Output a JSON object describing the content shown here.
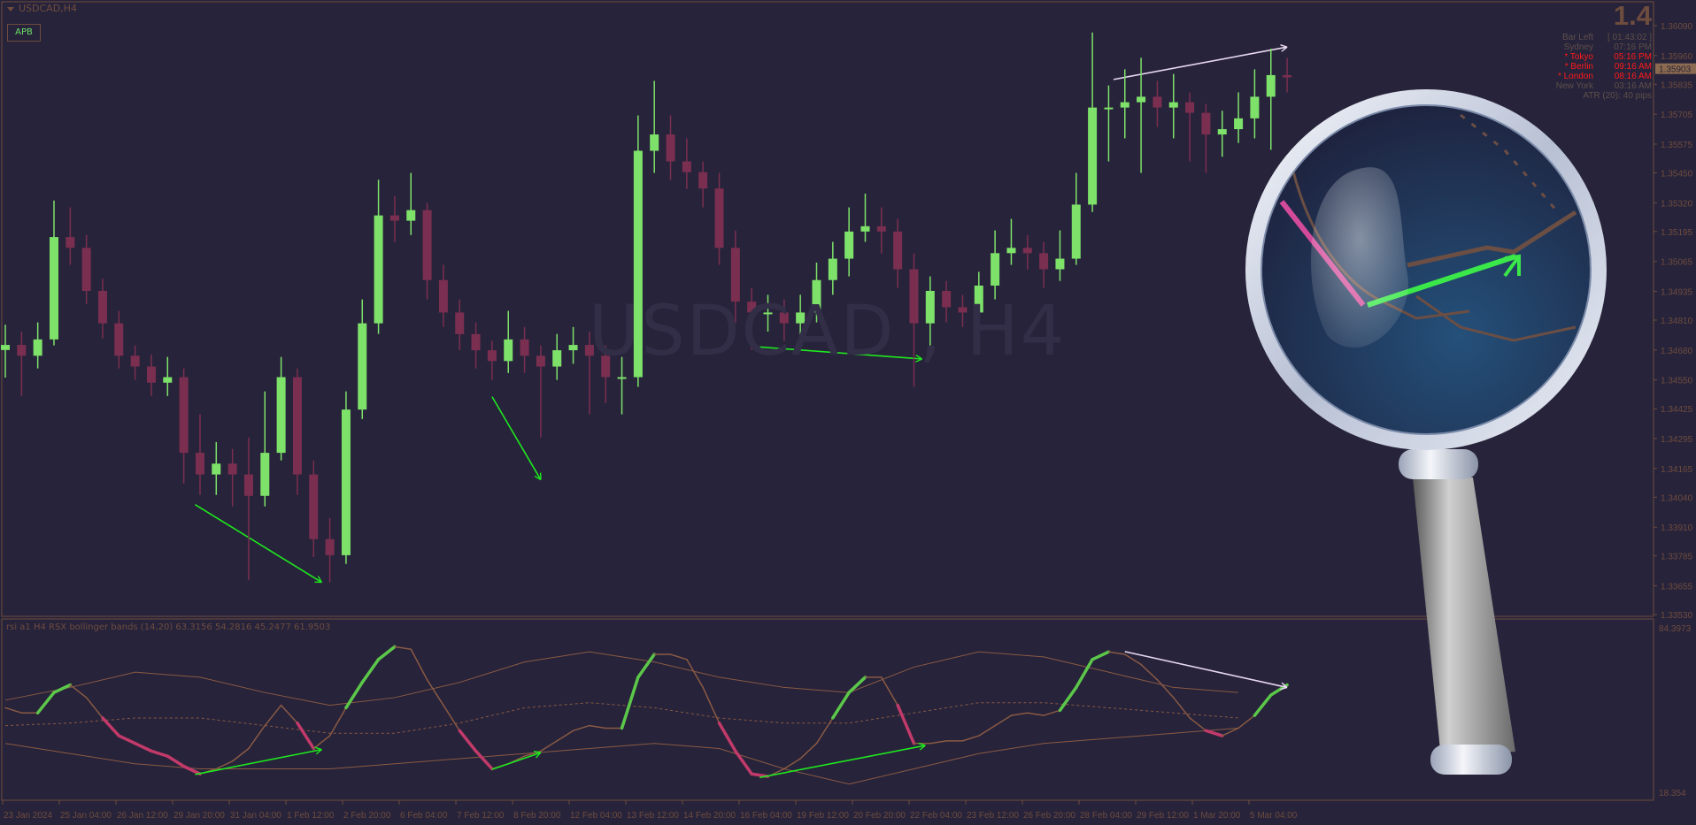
{
  "window": {
    "symbol_title": "USDCAD,H4",
    "apb_button": "APB",
    "watermark": "USDCAD , H4"
  },
  "info_panel": {
    "spread_big": "1.4",
    "rows": [
      {
        "label": "Bar Left",
        "value": "[ 01:43:02 ]",
        "highlight": false
      },
      {
        "label": "Sydney",
        "value": "07:16 PM",
        "highlight": false
      },
      {
        "label": "* Tokyo",
        "value": "05:16 PM",
        "highlight": true
      },
      {
        "label": "* Berlin",
        "value": "09:16 AM",
        "highlight": true
      },
      {
        "label": "* London",
        "value": "08:16 AM",
        "highlight": true
      },
      {
        "label": "New York",
        "value": "03:16 AM",
        "highlight": false
      }
    ],
    "atr": "ATR (20): 40 pips"
  },
  "indicator": {
    "label": "rsi a1 H4 RSX bollinger bands (14,20) 63.3156 54.2816 45.2477 61.9503",
    "axis_max": "84.3973",
    "axis_min": "18.354"
  },
  "colors": {
    "background": "#27233a",
    "bull": "#7ee26a",
    "bear": "#7a2f50",
    "border": "#6e4c3e",
    "divergence_bull": "#1ee81e",
    "divergence_bear": "#e8d8f0",
    "rsx": "#8a5a44",
    "rsx_up": "#5cc84a",
    "rsx_down": "#c23a6a",
    "current_price_bg": "#8a6a50"
  },
  "chart_data": [
    {
      "type": "candlestick",
      "title": "USDCAD,H4",
      "ylim": [
        1.3353,
        1.3609
      ],
      "y_ticks": [
        "1.36090",
        "1.35960",
        "1.35835",
        "1.35705",
        "1.35575",
        "1.35450",
        "1.35320",
        "1.35195",
        "1.35065",
        "1.34935",
        "1.34810",
        "1.34680",
        "1.34550",
        "1.34425",
        "1.34295",
        "1.34165",
        "1.34040",
        "1.33910",
        "1.33785",
        "1.33655",
        "1.33530"
      ],
      "current_price": "1.35903",
      "x_ticks": [
        "23 Jan 2024",
        "25 Jan 04:00",
        "26 Jan 12:00",
        "29 Jan 20:00",
        "31 Jan 04:00",
        "1 Feb 12:00",
        "2 Feb 20:00",
        "6 Feb 04:00",
        "7 Feb 12:00",
        "8 Feb 20:00",
        "12 Feb 04:00",
        "13 Feb 12:00",
        "14 Feb 20:00",
        "16 Feb 04:00",
        "19 Feb 12:00",
        "20 Feb 20:00",
        "22 Feb 04:00",
        "23 Feb 12:00",
        "26 Feb 20:00",
        "28 Feb 04:00",
        "29 Feb 12:00",
        "1 Mar 20:00",
        "5 Mar 04:00"
      ],
      "open": [
        1.3468,
        1.34702,
        1.34655,
        1.34726,
        1.35171,
        1.35124,
        1.34937,
        1.34796,
        1.34655,
        1.34608,
        1.34538,
        1.34562,
        1.34233,
        1.34139,
        1.34186,
        1.34139,
        1.34046,
        1.34233,
        1.34562,
        1.34139,
        1.33858,
        1.33788,
        1.34421,
        1.34796,
        1.35265,
        1.35242,
        1.35288,
        1.34984,
        1.34843,
        1.34749,
        1.34679,
        1.34632,
        1.34726,
        1.34655,
        1.34608,
        1.34679,
        1.34702,
        1.34655,
        1.34562,
        1.34562,
        1.35546,
        1.35617,
        1.355,
        1.35453,
        1.35382,
        1.35124,
        1.3489,
        1.34843,
        1.34843,
        1.34796,
        1.34843,
        1.34984,
        1.35077,
        1.35195,
        1.35218,
        1.35195,
        1.35031,
        1.34796,
        1.34937,
        1.34866,
        1.34843,
        1.3496,
        1.35101,
        1.35124,
        1.35101,
        1.35031,
        1.35077,
        1.35312,
        1.35734,
        1.35734,
        1.35757,
        1.35781,
        1.35734,
        1.35757,
        1.35711,
        1.35617,
        1.3564,
        1.35687,
        1.35781,
        1.35875
      ],
      "high": [
        1.3479,
        1.3476,
        1.348,
        1.3533,
        1.353,
        1.3518,
        1.3499,
        1.3485,
        1.347,
        1.3466,
        1.3465,
        1.346,
        1.344,
        1.3428,
        1.3425,
        1.343,
        1.345,
        1.3465,
        1.346,
        1.342,
        1.3395,
        1.345,
        1.349,
        1.3542,
        1.3535,
        1.3545,
        1.3532,
        1.3505,
        1.349,
        1.348,
        1.3472,
        1.3485,
        1.3478,
        1.347,
        1.3475,
        1.3478,
        1.3476,
        1.347,
        1.3465,
        1.357,
        1.3585,
        1.357,
        1.356,
        1.355,
        1.3545,
        1.352,
        1.3495,
        1.3492,
        1.349,
        1.3492,
        1.3506,
        1.3515,
        1.353,
        1.3536,
        1.353,
        1.3525,
        1.351,
        1.35,
        1.3498,
        1.3492,
        1.3502,
        1.352,
        1.3525,
        1.3518,
        1.3515,
        1.352,
        1.3545,
        1.3606,
        1.3583,
        1.359,
        1.3595,
        1.3585,
        1.3588,
        1.358,
        1.3575,
        1.3572,
        1.358,
        1.359,
        1.3599,
        1.3595
      ],
      "low": [
        1.3456,
        1.3448,
        1.346,
        1.347,
        1.3505,
        1.3488,
        1.3473,
        1.346,
        1.3455,
        1.3448,
        1.3448,
        1.341,
        1.3405,
        1.3405,
        1.34,
        1.3368,
        1.34,
        1.342,
        1.3405,
        1.3378,
        1.3367,
        1.3375,
        1.3438,
        1.3475,
        1.3515,
        1.3518,
        1.349,
        1.3478,
        1.3468,
        1.346,
        1.3455,
        1.3458,
        1.3458,
        1.343,
        1.3455,
        1.3462,
        1.344,
        1.3445,
        1.344,
        1.3452,
        1.3545,
        1.3542,
        1.3538,
        1.353,
        1.3505,
        1.348,
        1.3468,
        1.3476,
        1.3472,
        1.3474,
        1.348,
        1.3492,
        1.35,
        1.3515,
        1.351,
        1.3495,
        1.3452,
        1.347,
        1.348,
        1.3478,
        1.348,
        1.349,
        1.3505,
        1.3503,
        1.3495,
        1.3498,
        1.3505,
        1.3528,
        1.355,
        1.356,
        1.3545,
        1.3565,
        1.356,
        1.355,
        1.3545,
        1.3552,
        1.3558,
        1.356,
        1.3555,
        1.358
      ],
      "close": [
        1.34702,
        1.34655,
        1.34726,
        1.35171,
        1.35124,
        1.34937,
        1.34796,
        1.34655,
        1.34608,
        1.34538,
        1.34562,
        1.34233,
        1.34139,
        1.34186,
        1.34139,
        1.34046,
        1.34233,
        1.34562,
        1.34139,
        1.33858,
        1.33788,
        1.34421,
        1.34796,
        1.35265,
        1.35242,
        1.35288,
        1.34984,
        1.34843,
        1.34749,
        1.34679,
        1.34632,
        1.34726,
        1.34655,
        1.34608,
        1.34679,
        1.34702,
        1.34655,
        1.34562,
        1.34562,
        1.35546,
        1.35617,
        1.355,
        1.35453,
        1.35382,
        1.35124,
        1.3489,
        1.34843,
        1.34843,
        1.34796,
        1.34843,
        1.34984,
        1.35077,
        1.35195,
        1.35218,
        1.35195,
        1.35031,
        1.34796,
        1.34937,
        1.34866,
        1.34843,
        1.3496,
        1.35101,
        1.35124,
        1.35101,
        1.35031,
        1.35077,
        1.35312,
        1.35734,
        1.35734,
        1.35757,
        1.35781,
        1.35734,
        1.35757,
        1.35711,
        1.35617,
        1.3564,
        1.35687,
        1.35781,
        1.35875,
        1.35865
      ],
      "divergences": [
        {
          "type": "bullish",
          "from": [
            11.7,
            1.34008
          ],
          "to": [
            19.5,
            1.3367
          ]
        },
        {
          "type": "bullish",
          "from": [
            30,
            1.34477
          ],
          "to": [
            33,
            1.34116
          ]
        },
        {
          "type": "bullish",
          "from": [
            46.5,
            1.34693
          ],
          "to": [
            56.5,
            1.34641
          ]
        },
        {
          "type": "bearish",
          "from": [
            68.3,
            1.35856
          ],
          "to": [
            79,
            1.35997
          ]
        }
      ]
    },
    {
      "type": "line",
      "title": "rsi a1 H4 RSX bollinger bands (14,20)",
      "ylim": [
        18.354,
        84.3973
      ],
      "rsx": [
        54,
        52,
        52,
        60,
        63,
        58,
        50,
        43,
        40,
        37,
        35,
        31,
        28,
        30,
        33,
        38,
        47,
        55,
        48,
        38,
        43,
        54,
        64,
        73,
        78,
        77,
        65,
        55,
        45,
        37,
        30,
        32,
        35,
        37,
        41,
        45,
        47,
        46,
        46,
        66,
        75,
        75,
        73,
        62,
        48,
        37,
        28,
        27,
        30,
        34,
        40,
        50,
        60,
        66,
        66,
        55,
        40,
        40,
        41,
        41,
        43,
        47,
        51,
        52,
        51,
        53,
        62,
        73,
        76,
        75,
        71,
        65,
        58,
        50,
        45,
        43,
        46,
        51,
        59,
        63
      ],
      "band_x": [
        0,
        4,
        8,
        12,
        16,
        20,
        24,
        28,
        32,
        36,
        40,
        44,
        48,
        52,
        56,
        60,
        64,
        68,
        72,
        76
      ],
      "upper": [
        57,
        62,
        68,
        66,
        60,
        55,
        58,
        64,
        72,
        76,
        72,
        66,
        62,
        60,
        70,
        76,
        74,
        68,
        62,
        60
      ],
      "middle": [
        47,
        48,
        50,
        50,
        47,
        44,
        44,
        48,
        54,
        56,
        54,
        50,
        48,
        48,
        52,
        56,
        56,
        54,
        52,
        50
      ],
      "lower": [
        40,
        36,
        32,
        30,
        30,
        30,
        32,
        34,
        36,
        38,
        40,
        38,
        30,
        24,
        30,
        36,
        40,
        42,
        44,
        46
      ],
      "divergences": [
        {
          "type": "bullish",
          "from": [
            11.7,
            27.8
          ],
          "to": [
            19.5,
            37.6
          ]
        },
        {
          "type": "bullish",
          "from": [
            30,
            29.8
          ],
          "to": [
            33,
            36.4
          ]
        },
        {
          "type": "bullish",
          "from": [
            46.5,
            26.6
          ],
          "to": [
            56.7,
            39.2
          ]
        },
        {
          "type": "bearish",
          "from": [
            69,
            76.1
          ],
          "to": [
            79,
            62
          ]
        }
      ]
    }
  ]
}
